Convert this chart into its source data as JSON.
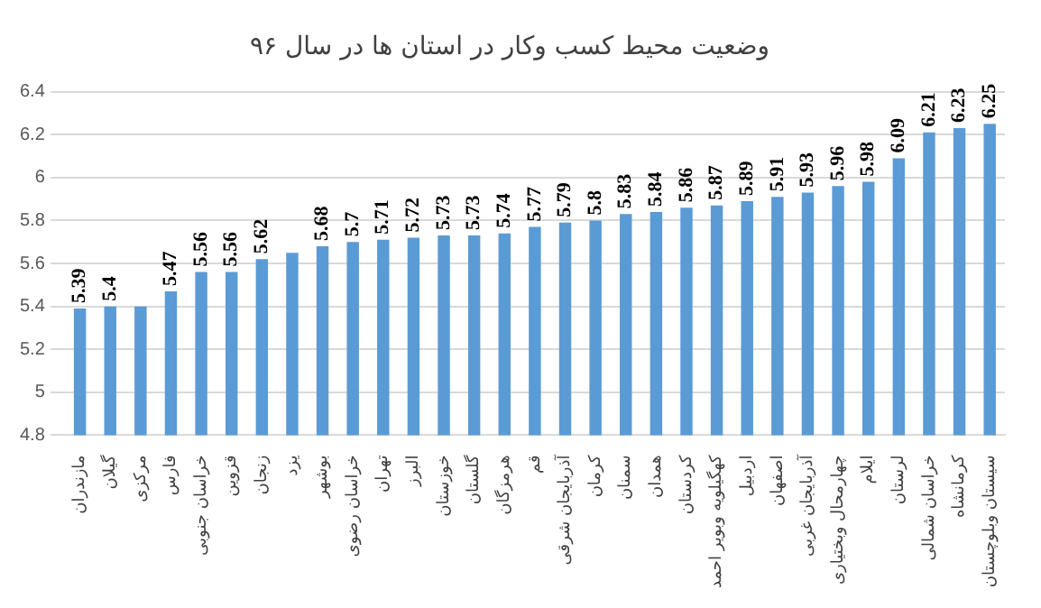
{
  "chart_data": {
    "type": "bar",
    "title": "وضعیت محیط کسب وکار در استان ها در سال ۹۶",
    "categories": [
      "مازندران",
      "گیلان",
      "مرکزی",
      "فارس",
      "خراسان جنوبی",
      "قزوین",
      "زنجان",
      "یزد",
      "بوشهر",
      "خراسان رضوی",
      "تهران",
      "البرز",
      "خوزستان",
      "گلستان",
      "هرمزگان",
      "قم",
      "آذربایجان شرقی",
      "کرمان",
      "سمنان",
      "همدان",
      "کردستان",
      "کهگیلویه وبویر احمد",
      "اردبیل",
      "اصفهان",
      "آذربایجان غربی",
      "چهارمحال وبختیاری",
      "ایلام",
      "لرستان",
      "خراسان شمالی",
      "کرمانشاه",
      "سیستان وبلوچستان"
    ],
    "values": [
      5.39,
      5.4,
      5.4,
      5.47,
      5.56,
      5.56,
      5.62,
      5.65,
      5.68,
      5.7,
      5.71,
      5.72,
      5.73,
      5.73,
      5.74,
      5.77,
      5.79,
      5.8,
      5.83,
      5.84,
      5.86,
      5.87,
      5.89,
      5.91,
      5.93,
      5.96,
      5.98,
      6.09,
      6.21,
      6.23,
      6.25
    ],
    "value_labels": [
      "5.39",
      "5.4",
      null,
      "5.47",
      "5.56",
      "5.56",
      "5.62",
      null,
      "5.68",
      "5.7",
      "5.71",
      "5.72",
      "5.73",
      "5.73",
      "5.74",
      "5.77",
      "5.79",
      "5.8",
      "5.83",
      "5.84",
      "5.86",
      "5.87",
      "5.89",
      "5.91",
      "5.93",
      "5.96",
      "5.98",
      "6.09",
      "6.21",
      "6.23",
      "6.25"
    ],
    "color": "#5b9bd5",
    "ylim": [
      4.8,
      6.4
    ],
    "yticks": [
      4.8,
      5,
      5.2,
      5.4,
      5.6,
      5.8,
      6,
      6.2,
      6.4
    ],
    "grid": "y",
    "legend": false
  }
}
